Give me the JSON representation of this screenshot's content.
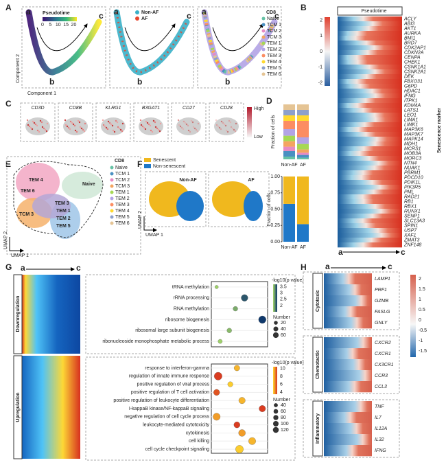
{
  "A": {
    "label": "A",
    "pseudotime": {
      "title": "Pseudotime",
      "colorbar_ticks": [
        0,
        5,
        10,
        15,
        20
      ],
      "clim": [
        0,
        22
      ]
    },
    "group": {
      "legend": [
        {
          "name": "Non-AF",
          "color": "#3ab0c8"
        },
        {
          "name": "AF",
          "color": "#e8452c"
        }
      ]
    },
    "subset_legend_title": "CD8",
    "start": "a",
    "branch": "b",
    "end": "c",
    "x_label": "Component 1",
    "y_label": "Component 2"
  },
  "cd8_subsets": {
    "names": [
      "Naive",
      "TCM 1",
      "TCM 2",
      "TCM 3",
      "TEM 1",
      "TEM 2",
      "TEM 3",
      "TEM 4",
      "TEM 5",
      "TEM 6"
    ],
    "colors": [
      "#66c2a5",
      "#4a90c2",
      "#e78ac3",
      "#f4a460",
      "#a6d854",
      "#b3a3e6",
      "#fc8d62",
      "#ffd92f",
      "#8da0cb",
      "#e5c494"
    ]
  },
  "B": {
    "label": "B",
    "title": "Pseudotime",
    "side_label": "Senescence marker",
    "start": "a",
    "end": "c",
    "colorbar_ticks": [
      2,
      1,
      0,
      -1,
      -2
    ],
    "clim": [
      -2.2,
      2.2
    ],
    "genes": [
      "ACLY",
      "ABI3",
      "AKT1",
      "AURKA",
      "BMI1",
      "BRD7",
      "CDK2AP1",
      "CDKN2A",
      "CENPA",
      "CHEK1",
      "CSNK1A1",
      "CSNK2A1",
      "DEK",
      "FBXO31",
      "G6PD",
      "HDAC1",
      "IFNG",
      "ITPK1",
      "KDM4A",
      "LATS1",
      "LEO1",
      "LIMA1",
      "LIMK1",
      "MAP3K6",
      "MAP3K7",
      "MAPK14",
      "MDH1",
      "MCRS1",
      "MOB3A",
      "MORC3",
      "NTN4",
      "NUAK1",
      "PBRM1",
      "PDCD10",
      "PDIK1L",
      "PIK3R5",
      "PML",
      "RAD21",
      "RB1",
      "RBX1",
      "RUNX1",
      "SENP1",
      "SLC13A3",
      "SPIN1",
      "USP7",
      "XAF1",
      "ZMAT3",
      "ZNF148"
    ]
  },
  "C": {
    "label": "C",
    "genes": [
      "CD3D",
      "CD8B",
      "KLRG1",
      "B3GAT1",
      "CD27",
      "CD28"
    ],
    "scale_high": "High",
    "scale_low": "Low"
  },
  "D": {
    "label": "D",
    "y_label": "Fraction of cells",
    "categories": [
      "Non-AF",
      "AF"
    ],
    "top": {
      "ylim": [
        0,
        1
      ],
      "values": [
        [
          0.05,
          0.1,
          0.08,
          0.1,
          0.1,
          0.12,
          0.15,
          0.1,
          0.1,
          0.1
        ],
        [
          0.03,
          0.05,
          0.04,
          0.06,
          0.1,
          0.12,
          0.3,
          0.1,
          0.1,
          0.1
        ]
      ]
    },
    "bottom": {
      "ylim": [
        0,
        1
      ],
      "yticks": [
        {
          "value": 0,
          "label": "0.00"
        },
        {
          "value": 0.25,
          "label": "0.25"
        },
        {
          "value": 0.5,
          "label": "0.50"
        },
        {
          "value": 0.75,
          "label": "0.75"
        },
        {
          "value": 1,
          "label": "1.00"
        }
      ],
      "series": [
        {
          "color": "#1f78c8",
          "values": [
            0.58,
            0.27
          ]
        },
        {
          "color": "#f0b81e",
          "values": [
            0.42,
            0.73
          ]
        }
      ]
    }
  },
  "E": {
    "label": "E",
    "legend_title": "CD8",
    "clusters": [
      "TEM 4",
      "TEM 6",
      "Naive",
      "TEM 3",
      "TEM 1",
      "TEM 2",
      "TEM 5",
      "TCM 3"
    ],
    "x_label": "UMAP 1",
    "y_label": "UMAP 2"
  },
  "F": {
    "label": "F",
    "legend": [
      {
        "name": "Senescent",
        "color": "#f0b81e"
      },
      {
        "name": "Non-senescent",
        "color": "#1f78c8"
      }
    ],
    "groups": [
      "Non-AF",
      "AF"
    ],
    "x_label": "UMAP 1",
    "y_label": "UMAP 2"
  },
  "G": {
    "label": "G",
    "start": "a",
    "end": "c",
    "blocks": [
      "Downregulation",
      "Upregulation"
    ],
    "down": {
      "colorbar_title": "-log10(p value)",
      "colorbar_ticks": [
        3.5,
        3.0,
        2.5,
        2.0
      ],
      "clim": [
        1.5,
        3.7
      ],
      "size_title": "Number",
      "size_ticks": [
        20,
        40,
        60
      ],
      "terms": [
        {
          "name": "tRNA methylation",
          "x": 0.05,
          "p": 1.6,
          "n": 8
        },
        {
          "name": "rRNA processing",
          "x": 0.6,
          "p": 3.2,
          "n": 50
        },
        {
          "name": "RNA methylation",
          "x": 0.42,
          "p": 2.1,
          "n": 20
        },
        {
          "name": "ribosome biogenesis",
          "x": 0.95,
          "p": 3.6,
          "n": 65
        },
        {
          "name": "ribosomal large subunit biogenesis",
          "x": 0.3,
          "p": 1.9,
          "n": 20
        },
        {
          "name": "ribonucleoside monophosphate metabolic process",
          "x": 0.12,
          "p": 1.6,
          "n": 15
        }
      ]
    },
    "up": {
      "colorbar_title": "-log10(p value)",
      "colorbar_ticks": [
        10,
        8,
        6,
        4
      ],
      "clim": [
        3.5,
        10.5
      ],
      "size_title": "Number",
      "size_ticks": [
        40,
        60,
        80,
        100,
        120
      ],
      "terms": [
        {
          "name": "response to interferon-gamma",
          "x": 0.45,
          "p": 5,
          "n": 50
        },
        {
          "name": "regulation of innate immune response",
          "x": 0.08,
          "p": 10,
          "n": 110
        },
        {
          "name": "positive regulation of viral process",
          "x": 0.32,
          "p": 4,
          "n": 40
        },
        {
          "name": "positive regulation of T cell activation",
          "x": 0.05,
          "p": 9,
          "n": 60
        },
        {
          "name": "positive regulation of leukocyte differentiation",
          "x": 0.55,
          "p": 5,
          "n": 70
        },
        {
          "name": "I-kappaB kinase/NF-kappaB signaling",
          "x": 0.95,
          "p": 10,
          "n": 70
        },
        {
          "name": "negative regulation of cell cycle process",
          "x": 0.05,
          "p": 6,
          "n": 90
        },
        {
          "name": "leukocyte-mediated cytotoxicity",
          "x": 0.45,
          "p": 10,
          "n": 60
        },
        {
          "name": "cytokinesis",
          "x": 0.55,
          "p": 6,
          "n": 80
        },
        {
          "name": "cell killing",
          "x": 0.75,
          "p": 5,
          "n": 90
        },
        {
          "name": "cell cycle checkpoint signaling",
          "x": 0.5,
          "p": 4,
          "n": 110
        }
      ]
    }
  },
  "H": {
    "label": "H",
    "start": "a",
    "end": "c",
    "colorbar_ticks": [
      2,
      1.5,
      1,
      0.5,
      0,
      -0.5,
      -1,
      -1.5
    ],
    "clim": [
      -1.8,
      2.2
    ],
    "groups": [
      {
        "name": "Cytotoxic",
        "genes": [
          "LAMP1",
          "PRF1",
          "GZMB",
          "FASLG",
          "GNLY"
        ]
      },
      {
        "name": "Chemotactic",
        "genes": [
          "CXCR2",
          "CXCR1",
          "CX3CR1",
          "CCR3",
          "CCL3"
        ]
      },
      {
        "name": "Inflammatory",
        "genes": [
          "TNF",
          "IL7",
          "IL12A",
          "IL32",
          "IFNG"
        ]
      }
    ]
  }
}
